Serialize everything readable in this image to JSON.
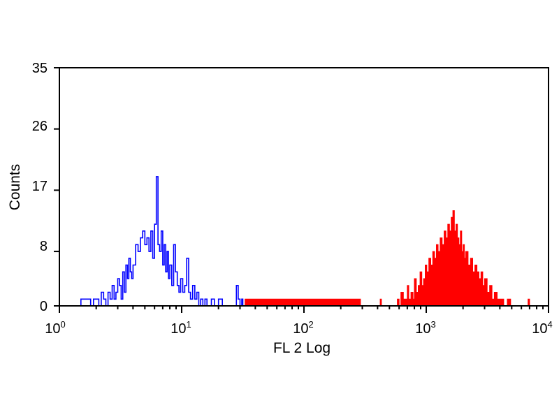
{
  "chart_data": {
    "type": "histogram",
    "xlabel": "FL 2 Log",
    "ylabel": "Counts",
    "x_scale": "log",
    "xlim": [
      1,
      10000
    ],
    "ylim": [
      0,
      35
    ],
    "yticks": [
      "0",
      "8",
      "17",
      "26",
      "35"
    ],
    "xticks": [
      {
        "base": "10",
        "exp": "0"
      },
      {
        "base": "10",
        "exp": "1"
      },
      {
        "base": "10",
        "exp": "2"
      },
      {
        "base": "10",
        "exp": "3"
      },
      {
        "base": "10",
        "exp": "4"
      }
    ],
    "grid": false,
    "series": [
      {
        "color": "#0000ff",
        "style": "outline",
        "x": [
          1.4,
          1.5,
          1.8,
          1.9,
          2.1,
          2.2,
          2.3,
          2.4,
          2.5,
          2.6,
          2.7,
          2.8,
          2.9,
          3.0,
          3.1,
          3.2,
          3.3,
          3.4,
          3.5,
          3.6,
          3.7,
          3.8,
          3.9,
          4.0,
          4.2,
          4.4,
          4.6,
          4.8,
          5.0,
          5.2,
          5.4,
          5.6,
          5.8,
          6.0,
          6.2,
          6.4,
          6.6,
          6.8,
          7.0,
          7.2,
          7.4,
          7.6,
          7.8,
          8.0,
          8.3,
          8.6,
          8.9,
          9.2,
          9.5,
          9.8,
          10.2,
          10.6,
          11.0,
          11.4,
          11.8,
          12.3,
          12.8,
          13.3,
          13.8,
          14.3,
          14.9,
          15.5,
          16.1,
          16.8,
          17.5,
          18.5,
          20.0,
          21.5,
          23.0,
          28.0,
          29.0,
          30.0,
          31.0
        ],
        "y": [
          0,
          1,
          0,
          1,
          0,
          2,
          1,
          0,
          2,
          1,
          3,
          1,
          2,
          4,
          3,
          1,
          5,
          2,
          6,
          4,
          7,
          5,
          4,
          6,
          9,
          8,
          10,
          11,
          9,
          10,
          8,
          11,
          7,
          12,
          19,
          9,
          8,
          11,
          6,
          9,
          5,
          8,
          4,
          6,
          3,
          9,
          5,
          3,
          2,
          4,
          2,
          3,
          7,
          2,
          1,
          3,
          1,
          2,
          0,
          1,
          0,
          1,
          0,
          0,
          1,
          0,
          1,
          0,
          0,
          3,
          1,
          0,
          1
        ]
      },
      {
        "color": "#ff0000",
        "style": "filled",
        "x": [
          33.0,
          280,
          290,
          420,
          430,
          580,
          600,
          620,
          650,
          680,
          700,
          720,
          750,
          780,
          800,
          830,
          860,
          890,
          920,
          950,
          980,
          1010,
          1050,
          1090,
          1130,
          1170,
          1210,
          1250,
          1300,
          1350,
          1400,
          1450,
          1500,
          1550,
          1600,
          1650,
          1700,
          1750,
          1800,
          1850,
          1900,
          1950,
          2000,
          2050,
          2100,
          2200,
          2300,
          2400,
          2500,
          2600,
          2700,
          2800,
          2900,
          3000,
          3150,
          3300,
          3450,
          3600,
          3800,
          4000,
          4300,
          4600,
          4900,
          6800,
          7000
        ],
        "y": [
          1,
          1,
          0,
          1,
          0,
          1,
          0,
          2,
          1,
          1,
          3,
          1,
          2,
          1,
          4,
          2,
          3,
          5,
          3,
          4,
          6,
          5,
          7,
          6,
          8,
          7,
          9,
          8,
          10,
          9,
          11,
          10,
          12,
          11,
          13,
          14,
          11,
          12,
          10,
          9,
          11,
          8,
          9,
          7,
          8,
          6,
          7,
          5,
          6,
          5,
          4,
          5,
          3,
          4,
          2,
          3,
          1,
          2,
          1,
          1,
          0,
          1,
          0,
          1,
          0
        ]
      }
    ]
  }
}
